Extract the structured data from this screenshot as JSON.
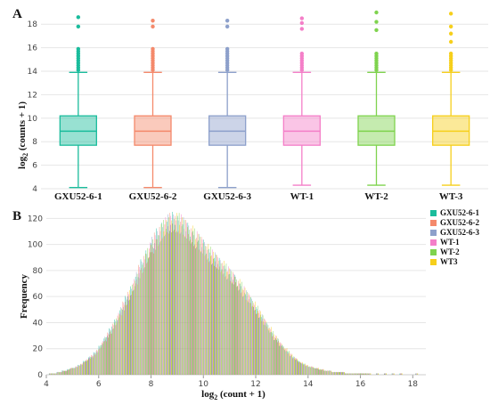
{
  "chart_data": [
    {
      "type": "box",
      "panel_label": "A",
      "ylabel_main": "log",
      "ylabel_sub": "2",
      "ylabel_rest": " (counts + 1)",
      "ylim": [
        4,
        19
      ],
      "yticks": [
        "4",
        "6",
        "8",
        "10",
        "12",
        "14",
        "16",
        "18"
      ],
      "grid": true,
      "series": [
        {
          "name": "GXU52-6-1",
          "color": "#1abc9c",
          "min": 4.1,
          "q1": 7.7,
          "median": 8.9,
          "q3": 10.2,
          "max": 13.9,
          "outliers": [
            14.1,
            14.3,
            14.5,
            14.7,
            14.9,
            15.1,
            15.3,
            15.5,
            15.7,
            15.9,
            17.8,
            18.6
          ]
        },
        {
          "name": "GXU52-6-2",
          "color": "#f4896b",
          "min": 4.1,
          "q1": 7.7,
          "median": 8.9,
          "q3": 10.2,
          "max": 13.9,
          "outliers": [
            14.1,
            14.3,
            14.5,
            14.7,
            14.9,
            15.1,
            15.3,
            15.5,
            15.7,
            15.9,
            17.8,
            18.3
          ]
        },
        {
          "name": "GXU52-6-3",
          "color": "#8da0cb",
          "min": 4.1,
          "q1": 7.7,
          "median": 8.9,
          "q3": 10.2,
          "max": 13.9,
          "outliers": [
            14.1,
            14.3,
            14.5,
            14.7,
            14.9,
            15.1,
            15.3,
            15.5,
            15.7,
            15.9,
            17.8,
            18.3
          ]
        },
        {
          "name": "WT-1",
          "color": "#f47fc8",
          "min": 4.3,
          "q1": 7.7,
          "median": 8.9,
          "q3": 10.2,
          "max": 13.9,
          "outliers": [
            14.1,
            14.3,
            14.5,
            14.7,
            14.9,
            15.1,
            15.3,
            15.5,
            17.6,
            18.1,
            18.5
          ]
        },
        {
          "name": "WT-2",
          "color": "#7fd34e",
          "min": 4.3,
          "q1": 7.7,
          "median": 8.9,
          "q3": 10.2,
          "max": 13.9,
          "outliers": [
            14.1,
            14.3,
            14.5,
            14.7,
            14.9,
            15.1,
            15.3,
            15.5,
            17.5,
            18.2,
            19.0
          ]
        },
        {
          "name": "WT-3",
          "color": "#f6cf1b",
          "min": 4.3,
          "q1": 7.7,
          "median": 8.9,
          "q3": 10.2,
          "max": 13.9,
          "outliers": [
            14.1,
            14.3,
            14.5,
            14.7,
            14.9,
            15.1,
            15.3,
            15.5,
            16.5,
            17.2,
            17.8,
            18.9
          ]
        }
      ]
    },
    {
      "type": "histogram",
      "panel_label": "B",
      "xlabel_main": "log",
      "xlabel_sub": "2",
      "xlabel_rest": " (count + 1)",
      "ylabel": "Frequency",
      "xlim": [
        4,
        18.5
      ],
      "ylim": [
        0,
        125
      ],
      "xticks": [
        "4",
        "6",
        "8",
        "10",
        "12",
        "14",
        "16",
        "18"
      ],
      "yticks": [
        "0",
        "20",
        "40",
        "60",
        "80",
        "100",
        "120"
      ],
      "bin_start": 4.1,
      "bin_width": 0.1,
      "legend_position": "top-right",
      "series": [
        {
          "name": "GXU52-6-1",
          "color": "#1abc9c"
        },
        {
          "name": "GXU52-6-2",
          "color": "#f4896b"
        },
        {
          "name": "GXU52-6-3",
          "color": "#8da0cb"
        },
        {
          "name": "WT-1",
          "color": "#f47fc8"
        },
        {
          "name": "WT-2",
          "color": "#7fd34e"
        },
        {
          "name": "WT3",
          "color": "#f6cf1b"
        }
      ],
      "frequency": [
        1,
        1,
        1,
        2,
        2,
        3,
        3,
        4,
        5,
        5,
        6,
        7,
        8,
        10,
        11,
        13,
        14,
        16,
        18,
        21,
        24,
        27,
        30,
        33,
        37,
        40,
        44,
        48,
        52,
        56,
        60,
        64,
        68,
        73,
        78,
        82,
        86,
        90,
        94,
        98,
        101,
        104,
        107,
        110,
        112,
        114,
        115,
        116,
        115,
        115,
        114,
        112,
        110,
        108,
        106,
        104,
        102,
        100,
        98,
        96,
        93,
        91,
        89,
        87,
        85,
        83,
        81,
        79,
        77,
        75,
        73,
        71,
        68,
        66,
        63,
        60,
        58,
        55,
        52,
        49,
        46,
        43,
        40,
        37,
        34,
        31,
        28,
        26,
        23,
        21,
        19,
        17,
        15,
        13,
        12,
        10,
        9,
        8,
        7,
        6,
        6,
        5,
        5,
        4,
        4,
        3,
        3,
        3,
        2,
        2,
        2,
        2,
        2,
        1,
        1,
        1,
        1,
        1,
        1,
        1,
        1,
        1,
        1,
        0,
        0,
        1,
        0,
        0,
        1,
        0,
        0,
        1,
        0,
        0,
        1,
        0,
        0,
        0,
        0,
        0,
        1,
        0,
        0,
        0,
        0
      ]
    }
  ]
}
